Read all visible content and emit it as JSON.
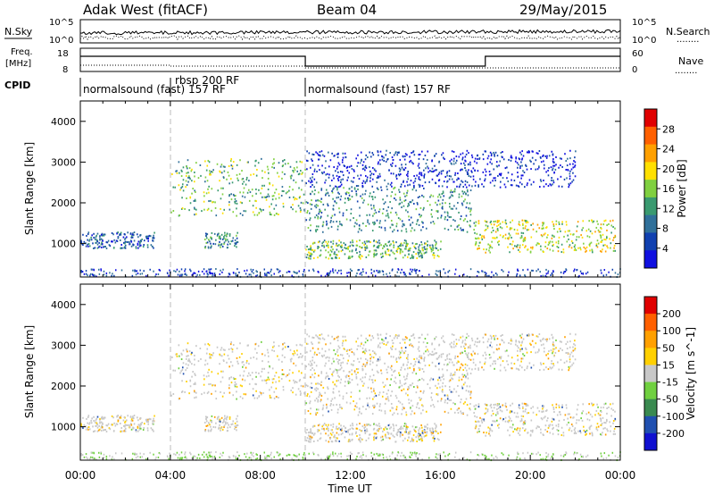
{
  "header": {
    "station": "Adak West (fitACF)",
    "beam": "Beam 04",
    "date": "29/May/2015"
  },
  "panel_labels": {
    "nsky": "N.Sky",
    "nsearch": "N.Search",
    "nsearch_dots": "........",
    "freq_line1": "Freq.",
    "freq_line2": "[MHz]",
    "nave": "Nave",
    "nave_dots": "........",
    "cpid": "CPID"
  },
  "noise_axis": {
    "top": "10^5",
    "bottom": "10^0"
  },
  "freq_axis": {
    "left_top": "18",
    "left_bottom": "8",
    "right_top": "60",
    "right_bottom": "0"
  },
  "cpid_segments": [
    {
      "label": "normalsound (fast) 157 RF",
      "start_hour": 0
    },
    {
      "label": "rbsp 200 RF",
      "start_hour": 4
    },
    {
      "label": "normalsound (fast) 157 RF",
      "start_hour": 10
    }
  ],
  "colors": {
    "power_scale": [
      "#1010e0",
      "#1040b0",
      "#30709a",
      "#3a9a70",
      "#80d040",
      "#ffe000",
      "#ffa000",
      "#ff6000",
      "#e00000"
    ],
    "velocity_scale": [
      "#1010d0",
      "#2050b0",
      "#3a8a50",
      "#70d040",
      "#c8c8c8",
      "#ffd000",
      "#ffa000",
      "#ff6000",
      "#e00000"
    ]
  },
  "chart_data": [
    {
      "type": "heatmap",
      "name": "power",
      "xlabel": "Time UT",
      "ylabel": "Slant Range [km]",
      "xlim": [
        0,
        24
      ],
      "ylim": [
        180,
        4500
      ],
      "yticks": [
        "1000",
        "2000",
        "3000",
        "4000"
      ],
      "colorbar_title": "Power [dB]",
      "colorbar_ticks": [
        "4",
        "8",
        "12",
        "16",
        "20",
        "24",
        "28"
      ],
      "echo_regions": [
        {
          "t_start": 0.0,
          "t_end": 3.3,
          "range_start": 900,
          "range_end": 1300,
          "level": 2
        },
        {
          "t_start": 5.5,
          "t_end": 7.0,
          "range_start": 900,
          "range_end": 1300,
          "level": 3
        },
        {
          "t_start": 4.0,
          "t_end": 10.0,
          "range_start": 1700,
          "range_end": 3100,
          "level": 4
        },
        {
          "t_start": 10.0,
          "t_end": 17.5,
          "range_start": 1300,
          "range_end": 2400,
          "level": 3
        },
        {
          "t_start": 10.0,
          "t_end": 16.0,
          "range_start": 650,
          "range_end": 1100,
          "level": 4
        },
        {
          "t_start": 17.5,
          "t_end": 23.8,
          "range_start": 800,
          "range_end": 1600,
          "level": 5
        },
        {
          "t_start": 10.0,
          "t_end": 22.0,
          "range_start": 2400,
          "range_end": 3300,
          "level": 1
        }
      ]
    },
    {
      "type": "heatmap",
      "name": "velocity",
      "xlabel": "Time UT",
      "ylabel": "Slant Range [km]",
      "xlim": [
        0,
        24
      ],
      "ylim": [
        180,
        4500
      ],
      "yticks": [
        "1000",
        "2000",
        "3000",
        "4000"
      ],
      "xticks": [
        "00:00",
        "04:00",
        "08:00",
        "12:00",
        "16:00",
        "20:00",
        "00:00"
      ],
      "colorbar_title": "Velocity [m s^-1]",
      "colorbar_ticks": [
        "200",
        "100",
        "50",
        "15",
        "-15",
        "-50",
        "-100",
        "-200"
      ]
    }
  ]
}
